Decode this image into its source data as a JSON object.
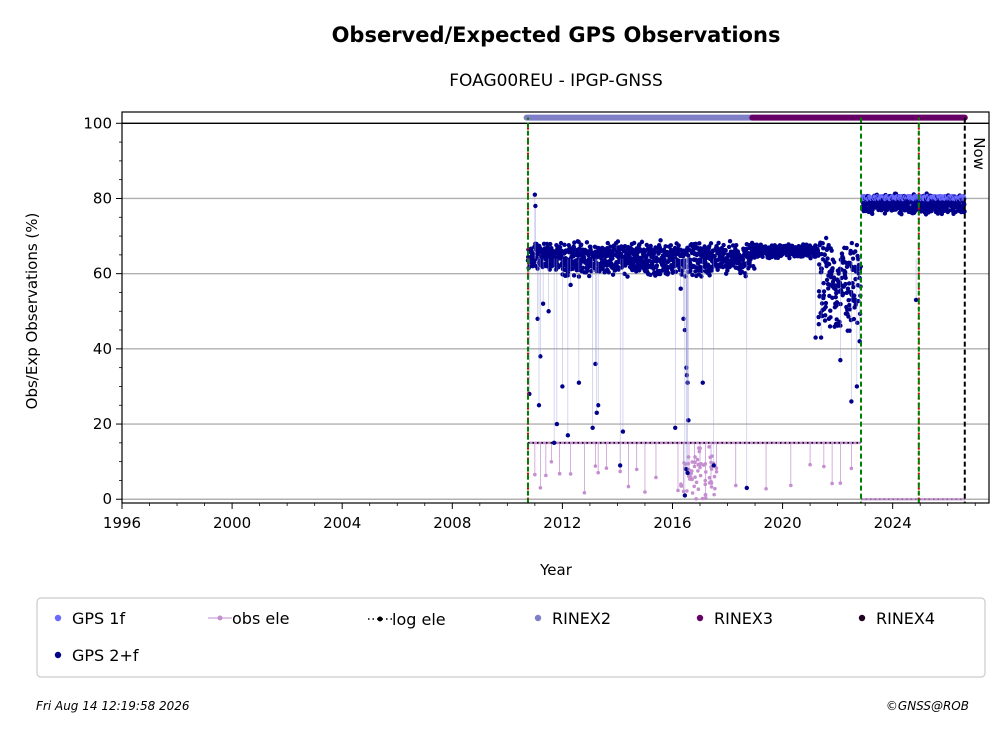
{
  "chart_data": {
    "type": "scatter",
    "title": "Observed/Expected GPS Observations",
    "subtitle": "FOAG00REU - IPGP-GNSS",
    "xlabel": "Year",
    "ylabel": "Obs/Exp Observations (%)",
    "xlim": [
      1996,
      2027.5
    ],
    "ylim": [
      -1,
      103
    ],
    "x_ticks": [
      1996,
      2000,
      2004,
      2008,
      2012,
      2016,
      2020,
      2024
    ],
    "y_ticks": [
      0,
      20,
      40,
      60,
      80,
      100
    ],
    "grid": "horizontal",
    "now_label": "Now",
    "now_x": 2026.62,
    "legend_position": "bottom",
    "legend": [
      {
        "label": "GPS 1f",
        "marker": "dot",
        "color": "#6a6aff"
      },
      {
        "label": "obs ele",
        "marker": "line-dot",
        "color": "#c58ed1"
      },
      {
        "label": "log ele",
        "marker": "dotted-line",
        "color": "#000000"
      },
      {
        "label": "RINEX2",
        "marker": "dot",
        "color": "#7f7fc8"
      },
      {
        "label": "RINEX3",
        "marker": "dot",
        "color": "#660066"
      },
      {
        "label": "RINEX4",
        "marker": "dot",
        "color": "#220022"
      },
      {
        "label": "GPS 2+f",
        "marker": "dot",
        "color": "#00008b"
      }
    ],
    "rinex_bars": [
      {
        "name": "RINEX2",
        "x_start": 2010.7,
        "x_end": 2018.9,
        "y": 101.5,
        "color": "#7f7fc8"
      },
      {
        "name": "RINEX3",
        "x_start": 2018.9,
        "x_end": 2026.62,
        "y": 101.5,
        "color": "#660066"
      }
    ],
    "event_lines": [
      {
        "x": 2010.75,
        "colors": [
          "#cc0000",
          "#008000"
        ]
      },
      {
        "x": 2022.85,
        "colors": [
          "#008000"
        ]
      },
      {
        "x": 2024.95,
        "colors": [
          "#cc0000",
          "#008000"
        ]
      },
      {
        "x": 2026.62,
        "colors": [
          "#000000"
        ]
      }
    ],
    "series": [
      {
        "name": "GPS 2+f",
        "color": "#00008b",
        "segments": [
          {
            "x_start": 2010.75,
            "x_end": 2012.0,
            "y_center": 64.5,
            "spread": 4
          },
          {
            "x_start": 2012.0,
            "x_end": 2016.0,
            "y_center": 64,
            "spread": 5
          },
          {
            "x_start": 2016.0,
            "x_end": 2019.0,
            "y_center": 64,
            "spread": 5
          },
          {
            "x_start": 2019.0,
            "x_end": 2021.3,
            "y_center": 66,
            "spread": 2
          },
          {
            "x_start": 2021.3,
            "x_end": 2022.85,
            "y_center": 57,
            "spread": 14
          },
          {
            "x_start": 2022.9,
            "x_end": 2026.62,
            "y_center": 78.5,
            "spread": 3
          }
        ],
        "outliers": [
          [
            2010.8,
            28
          ],
          [
            2011.0,
            81
          ],
          [
            2011.02,
            78
          ],
          [
            2011.1,
            48
          ],
          [
            2011.2,
            38
          ],
          [
            2011.15,
            25
          ],
          [
            2011.3,
            52
          ],
          [
            2011.5,
            50
          ],
          [
            2011.7,
            15
          ],
          [
            2011.8,
            20
          ],
          [
            2012.0,
            30
          ],
          [
            2012.2,
            17
          ],
          [
            2012.3,
            57
          ],
          [
            2012.6,
            31
          ],
          [
            2013.1,
            19
          ],
          [
            2013.2,
            36
          ],
          [
            2013.3,
            25
          ],
          [
            2013.25,
            23
          ],
          [
            2014.2,
            18
          ],
          [
            2014.1,
            9
          ],
          [
            2016.1,
            19
          ],
          [
            2016.3,
            56
          ],
          [
            2016.4,
            48
          ],
          [
            2016.45,
            45
          ],
          [
            2016.5,
            35
          ],
          [
            2016.52,
            33
          ],
          [
            2016.55,
            31
          ],
          [
            2016.58,
            21
          ],
          [
            2016.5,
            8
          ],
          [
            2016.55,
            7
          ],
          [
            2016.45,
            1
          ],
          [
            2017.1,
            31
          ],
          [
            2017.5,
            9
          ],
          [
            2018.7,
            3
          ],
          [
            2021.2,
            43
          ],
          [
            2021.4,
            43
          ],
          [
            2022.1,
            37
          ],
          [
            2022.5,
            26
          ],
          [
            2022.7,
            30
          ],
          [
            2022.8,
            42
          ],
          [
            2024.85,
            53
          ]
        ]
      },
      {
        "name": "obs ele",
        "color": "#c58ed1",
        "segments": [
          {
            "x_start": 2010.75,
            "x_end": 2022.85,
            "y_center": 15,
            "spread": 0
          }
        ],
        "drops": [
          2011.0,
          2011.2,
          2011.4,
          2011.6,
          2011.9,
          2012.3,
          2012.8,
          2013.2,
          2013.3,
          2013.6,
          2014.1,
          2014.4,
          2014.7,
          2015.0,
          2015.4,
          2016.2,
          2016.4,
          2016.6,
          2016.8,
          2017.0,
          2017.2,
          2017.4,
          2017.6,
          2018.3,
          2019.4,
          2020.3,
          2021.0,
          2021.5,
          2021.8,
          2022.1,
          2022.5
        ]
      },
      {
        "name": "log ele",
        "color": "#000000",
        "segments": [
          {
            "x_start": 2010.75,
            "x_end": 2022.85,
            "y": 15
          },
          {
            "x_start": 2022.85,
            "x_end": 2026.62,
            "y": 0
          }
        ]
      }
    ]
  },
  "footer": {
    "timestamp": "Fri Aug 14 12:19:58 2026",
    "credit": "©GNSS@ROB"
  }
}
